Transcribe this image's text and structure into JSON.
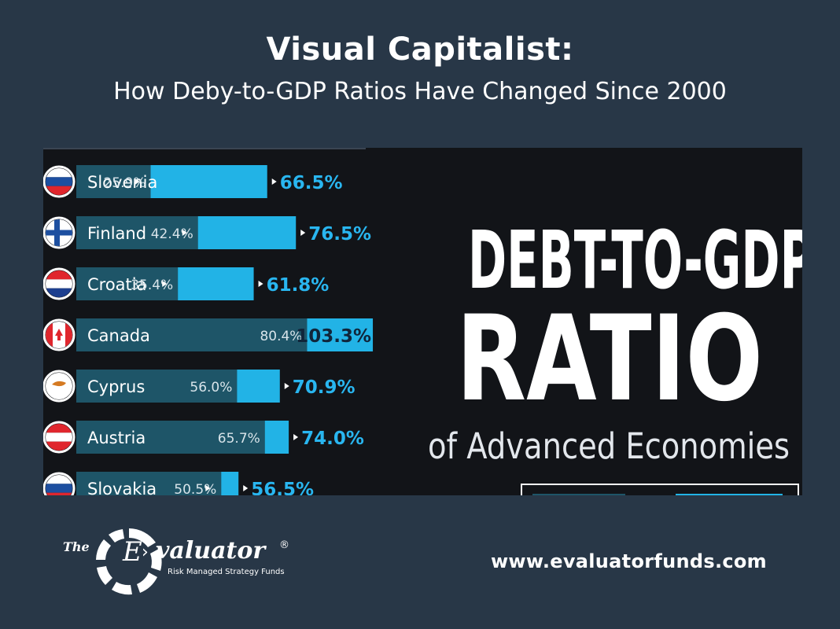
{
  "header": {
    "title": "Visual Capitalist:",
    "subtitle": "How Deby-to-GDP Ratios Have Changed Since 2000"
  },
  "infographic": {
    "headline_line1": "DEBT-TO-GDP",
    "headline_line2": "RATIO",
    "headline_line3": "of Advanced Economies"
  },
  "chart_data": {
    "type": "bar",
    "categories": [
      "Slovenia",
      "Finland",
      "Croatia",
      "Canada",
      "Cyprus",
      "Austria",
      "Slovakia"
    ],
    "series": [
      {
        "values": [
          25.9,
          42.4,
          35.4,
          80.4,
          56.0,
          65.7,
          50.5
        ],
        "labels": [
          "25.9%",
          "42.4%",
          "35.4%",
          "80.4%",
          "56.0%",
          "65.7%",
          "50.5%"
        ]
      },
      {
        "values": [
          66.5,
          76.5,
          61.8,
          103.3,
          70.9,
          74.0,
          56.5
        ],
        "labels": [
          "66.5%",
          "76.5%",
          "61.8%",
          "103.3%",
          "70.9%",
          "74.0%",
          "56.5%"
        ]
      }
    ],
    "flags": [
      "slovenia-flag-icon",
      "finland-flag-icon",
      "croatia-flag-icon",
      "canada-flag-icon",
      "cyprus-flag-icon",
      "austria-flag-icon",
      "slovakia-flag-icon"
    ],
    "colors": {
      "earlier": "#1e5568",
      "current": "#22b3e6",
      "current_label": "#29b6f0",
      "earlier_label": "#d8e4ea"
    }
  },
  "footer": {
    "logo_prefix": "The",
    "logo_letter": "E",
    "logo_arrow": "›",
    "logo_name": "valuator",
    "logo_registered": "®",
    "logo_tagline": "Risk Managed Strategy Funds",
    "website": "www.evaluatorfunds.com"
  }
}
